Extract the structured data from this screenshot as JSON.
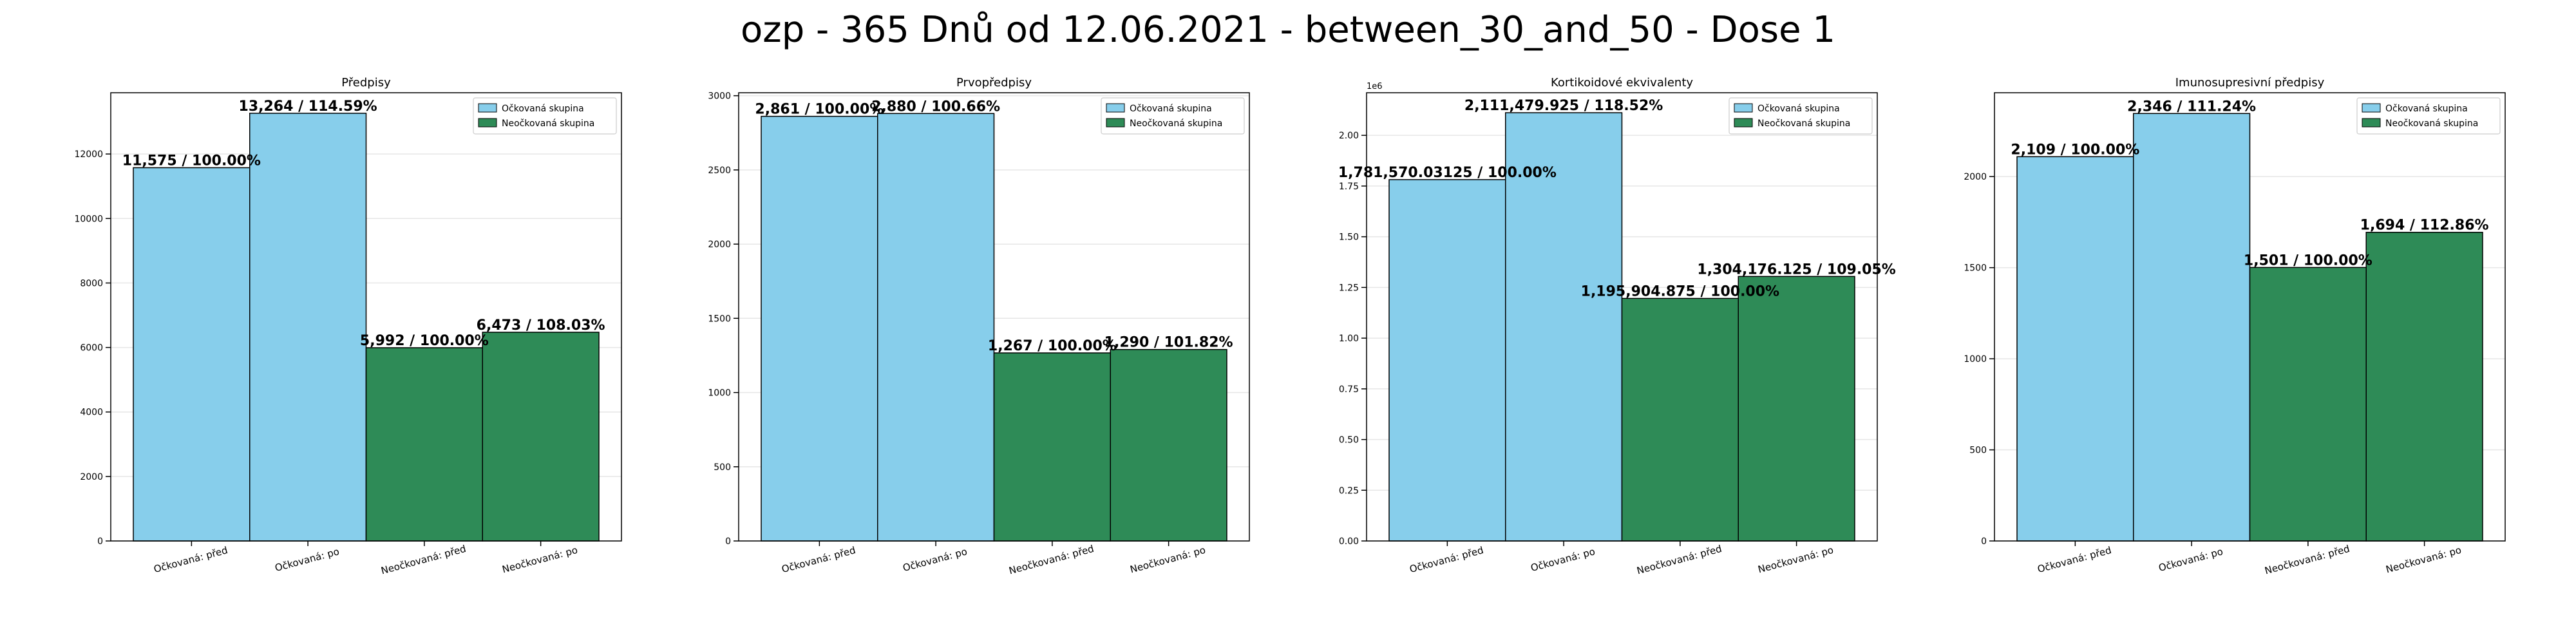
{
  "suptitle": "ozp - 365 Dnů od 12.06.2021 - between_30_and_50 - Dose 1",
  "colors": {
    "vaccinated": "#87CEEB",
    "unvaccinated": "#2E8B57"
  },
  "chart_data": [
    {
      "type": "bar",
      "title": "Předpisy",
      "categories": [
        "Očkovaná: před",
        "Očkovaná: po",
        "Neočkovaná: před",
        "Neočkovaná: po"
      ],
      "values": [
        11575,
        13264,
        5992,
        6473
      ],
      "labels": [
        "11,575 / 100.00%",
        "13,264 / 114.59%",
        "5,992 / 100.00%",
        "6,473 / 108.03%"
      ],
      "groups": [
        "vaccinated",
        "vaccinated",
        "unvaccinated",
        "unvaccinated"
      ],
      "legend": [
        "Očkovaná skupina",
        "Neočkovaná skupina"
      ],
      "legend_position": "top-right",
      "ylim": [
        0,
        13900
      ],
      "yticks": [
        0,
        2000,
        4000,
        6000,
        8000,
        10000,
        12000
      ],
      "ytick_labels": [
        "0",
        "2000",
        "4000",
        "6000",
        "8000",
        "10000",
        "12000"
      ],
      "offset_text": "",
      "grid": true
    },
    {
      "type": "bar",
      "title": "Prvopředpisy",
      "categories": [
        "Očkovaná: před",
        "Očkovaná: po",
        "Neočkovaná: před",
        "Neočkovaná: po"
      ],
      "values": [
        2861,
        2880,
        1267,
        1290
      ],
      "labels": [
        "2,861 / 100.00%",
        "2,880 / 100.66%",
        "1,267 / 100.00%",
        "1,290 / 101.82%"
      ],
      "groups": [
        "vaccinated",
        "vaccinated",
        "unvaccinated",
        "unvaccinated"
      ],
      "legend": [
        "Očkovaná skupina",
        "Neočkovaná skupina"
      ],
      "legend_position": "top-right",
      "ylim": [
        0,
        3020
      ],
      "yticks": [
        0,
        500,
        1000,
        1500,
        2000,
        2500,
        3000
      ],
      "ytick_labels": [
        "0",
        "500",
        "1000",
        "1500",
        "2000",
        "2500",
        "3000"
      ],
      "offset_text": "",
      "grid": true
    },
    {
      "type": "bar",
      "title": "Kortikoidové ekvivalenty",
      "categories": [
        "Očkovaná: před",
        "Očkovaná: po",
        "Neočkovaná: před",
        "Neočkovaná: po"
      ],
      "values": [
        1781570.03125,
        2111479.925,
        1195904.875,
        1304176.125
      ],
      "labels": [
        "1,781,570.03125 / 100.00%",
        "2,111,479.925 / 118.52%",
        "1,195,904.875 / 100.00%",
        "1,304,176.125 / 109.05%"
      ],
      "groups": [
        "vaccinated",
        "vaccinated",
        "unvaccinated",
        "unvaccinated"
      ],
      "legend": [
        "Očkovaná skupina",
        "Neočkovaná skupina"
      ],
      "legend_position": "top-right",
      "ylim": [
        0,
        2210000
      ],
      "yticks": [
        0,
        250000,
        500000,
        750000,
        1000000,
        1250000,
        1500000,
        1750000,
        2000000
      ],
      "ytick_labels": [
        "0.00",
        "0.25",
        "0.50",
        "0.75",
        "1.00",
        "1.25",
        "1.50",
        "1.75",
        "2.00"
      ],
      "offset_text": "1e6",
      "grid": true
    },
    {
      "type": "bar",
      "title": "Imunosupresivní předpisy",
      "categories": [
        "Očkovaná: před",
        "Očkovaná: po",
        "Neočkovaná: před",
        "Neočkovaná: po"
      ],
      "values": [
        2109,
        2346,
        1501,
        1694
      ],
      "labels": [
        "2,109 / 100.00%",
        "2,346 / 111.24%",
        "1,501 / 100.00%",
        "1,694 / 112.86%"
      ],
      "groups": [
        "vaccinated",
        "vaccinated",
        "unvaccinated",
        "unvaccinated"
      ],
      "legend": [
        "Očkovaná skupina",
        "Neočkovaná skupina"
      ],
      "legend_position": "top-right",
      "ylim": [
        0,
        2460
      ],
      "yticks": [
        0,
        500,
        1000,
        1500,
        2000
      ],
      "ytick_labels": [
        "0",
        "500",
        "1000",
        "1500",
        "2000"
      ],
      "offset_text": "",
      "grid": true
    }
  ]
}
